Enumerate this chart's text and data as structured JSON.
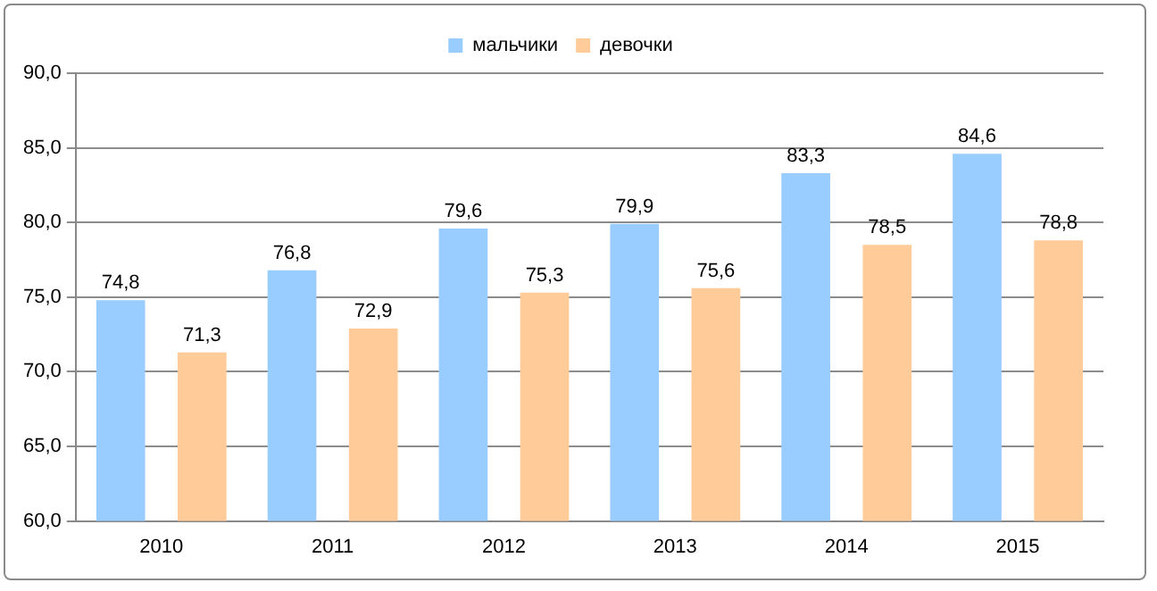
{
  "chart_data": {
    "type": "bar",
    "categories": [
      "2010",
      "2011",
      "2012",
      "2013",
      "2014",
      "2015"
    ],
    "series": [
      {
        "name": "мальчики",
        "color": "#99ccff",
        "values": [
          74.8,
          76.8,
          79.6,
          79.9,
          83.3,
          84.6
        ],
        "value_labels": [
          "74,8",
          "76,8",
          "79,6",
          "79,9",
          "83,3",
          "84,6"
        ]
      },
      {
        "name": "девочки",
        "color": "#ffcc99",
        "values": [
          71.3,
          72.9,
          75.3,
          75.6,
          78.5,
          78.8
        ],
        "value_labels": [
          "71,3",
          "72,9",
          "75,3",
          "75,6",
          "78,5",
          "78,8"
        ]
      }
    ],
    "ylim": [
      60,
      90
    ],
    "yticks": [
      {
        "value": 60,
        "label": "60,0"
      },
      {
        "value": 65,
        "label": "65,0"
      },
      {
        "value": 70,
        "label": "70,0"
      },
      {
        "value": 75,
        "label": "75,0"
      },
      {
        "value": 80,
        "label": "80,0"
      },
      {
        "value": 85,
        "label": "85,0"
      },
      {
        "value": 90,
        "label": "90,0"
      }
    ],
    "grid": "y",
    "legend": "top"
  }
}
